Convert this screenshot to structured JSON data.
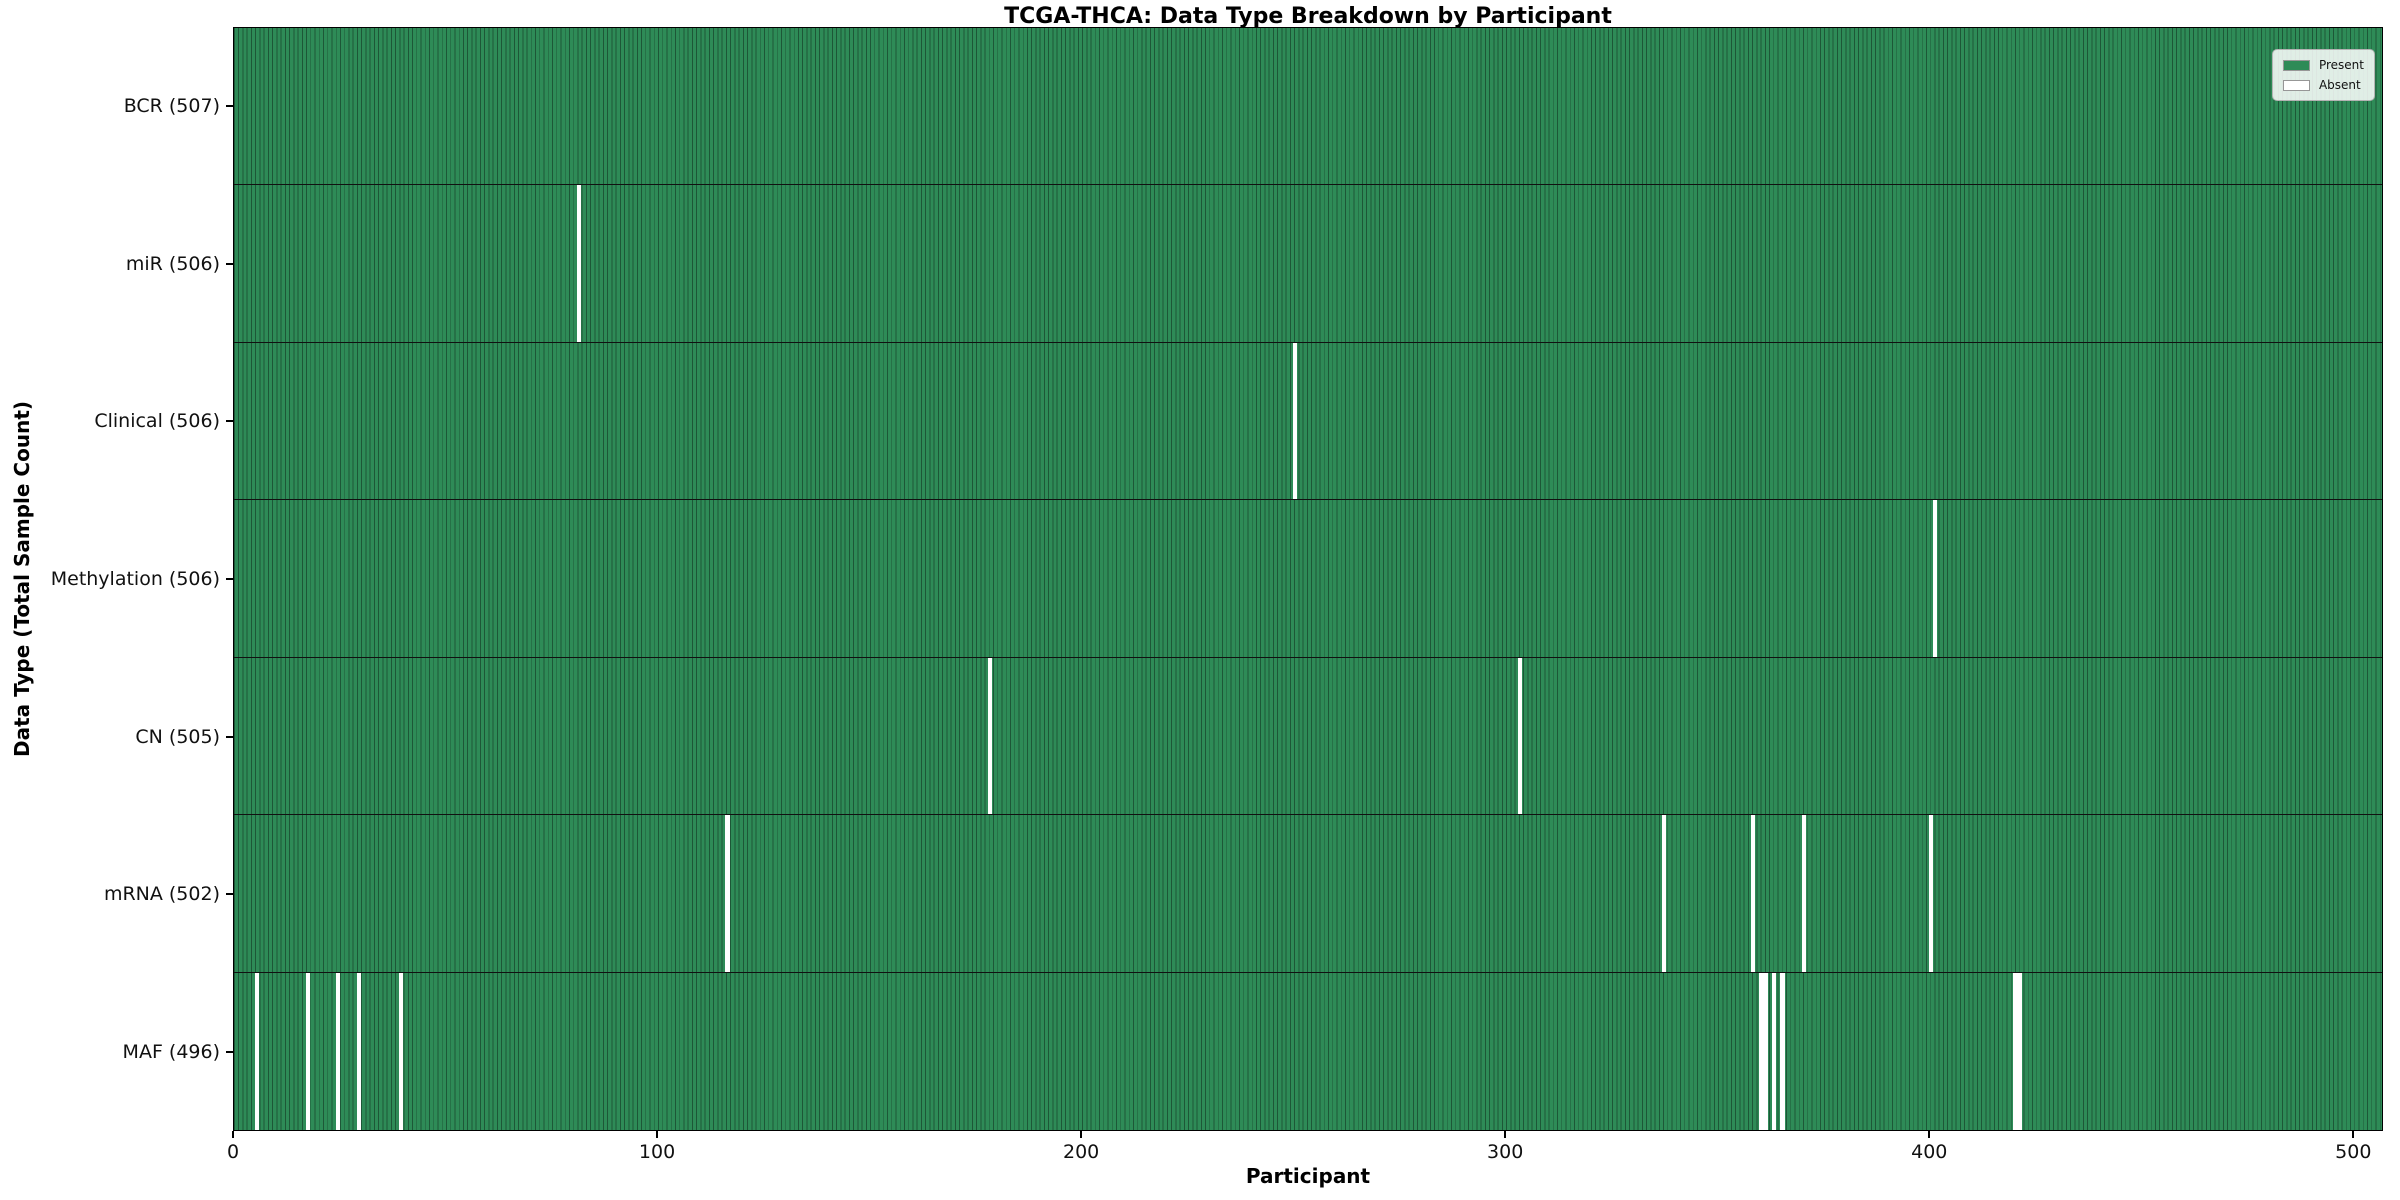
{
  "chart_data": {
    "type": "heatmap",
    "title": "TCGA-THCA: Data Type Breakdown by Participant",
    "xlabel": "Participant",
    "ylabel": "Data Type (Total Sample Count)",
    "legend_position": "upper right",
    "grid": false,
    "xlim": [
      0,
      507
    ],
    "x_ticks": [
      0,
      100,
      200,
      300,
      400,
      500
    ],
    "total_participants": 507,
    "legend": [
      {
        "label": "Present",
        "color": "#2e8b57"
      },
      {
        "label": "Absent",
        "color": "#ffffff"
      }
    ],
    "colors": {
      "present": "#2e8b57",
      "bar_edge": "#1d5737",
      "absent": "#ffffff",
      "row_divider": "#111111",
      "axis": "#000000"
    },
    "rows": [
      {
        "name": "BCR",
        "label": "BCR (507)",
        "count": 507,
        "absent": []
      },
      {
        "name": "miR",
        "label": "miR (506)",
        "count": 506,
        "absent": [
          81
        ]
      },
      {
        "name": "Clinical",
        "label": "Clinical (506)",
        "count": 506,
        "absent": [
          250
        ]
      },
      {
        "name": "Methylation",
        "label": "Methylation (506)",
        "count": 506,
        "absent": [
          401
        ]
      },
      {
        "name": "CN",
        "label": "CN (505)",
        "count": 505,
        "absent": [
          178,
          303
        ]
      },
      {
        "name": "mRNA",
        "label": "mRNA (502)",
        "count": 502,
        "absent": [
          116,
          337,
          358,
          370,
          400
        ]
      },
      {
        "name": "MAF",
        "label": "MAF (496)",
        "count": 496,
        "absent": [
          5,
          17,
          24,
          29,
          39,
          360,
          361,
          363,
          365,
          420,
          421
        ]
      }
    ]
  }
}
